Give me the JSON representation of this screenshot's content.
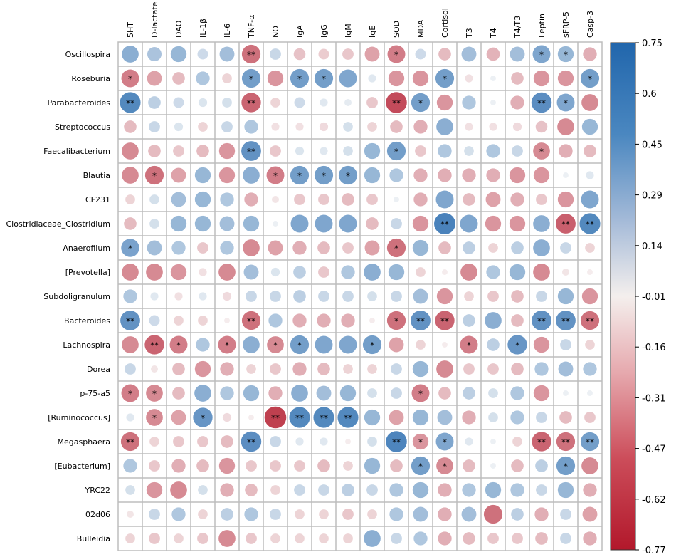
{
  "chart_data": {
    "type": "heatmap",
    "title": "",
    "columns": [
      "5HT",
      "D-lactate",
      "DAO",
      "IL-1β",
      "IL-6",
      "TNF-α",
      "NO",
      "IgA",
      "IgG",
      "IgM",
      "IgE",
      "SOD",
      "MDA",
      "Cortisol",
      "T3",
      "T4",
      "T4/T3",
      "Leptin",
      "sFRP-5",
      "Casp-3"
    ],
    "rows": [
      "Oscillospira",
      "Roseburia",
      "Parabacteroides",
      "Streptococcus",
      "Faecalibacterium",
      "Blautia",
      "CF231",
      "Clostridiaceae_Clostridium",
      "Anaerofilum",
      "[Prevotella]",
      "Subdoligranulum",
      "Bacteroides",
      "Lachnospira",
      "Dorea",
      "p-75-a5",
      "[Ruminococcus]",
      "Megasphaera",
      "[Eubacterium]",
      "YRC22",
      "02d06",
      "Bulleidia"
    ],
    "values": [
      [
        0.45,
        0.32,
        0.4,
        0.18,
        0.35,
        -0.55,
        0.2,
        -0.22,
        -0.18,
        -0.2,
        -0.35,
        -0.5,
        0.18,
        -0.25,
        0.35,
        -0.28,
        0.35,
        0.5,
        0.4,
        -0.3
      ],
      [
        -0.5,
        -0.35,
        -0.25,
        0.3,
        -0.15,
        0.55,
        -0.4,
        0.55,
        0.55,
        0.5,
        0.1,
        -0.4,
        -0.4,
        0.55,
        -0.1,
        0.05,
        -0.25,
        -0.4,
        -0.4,
        0.55
      ],
      [
        0.68,
        0.25,
        0.18,
        0.12,
        0.15,
        -0.6,
        -0.15,
        0.18,
        0.1,
        0.08,
        -0.2,
        -0.7,
        0.55,
        -0.4,
        0.3,
        0.05,
        -0.3,
        0.65,
        0.5,
        -0.45
      ],
      [
        -0.25,
        0.2,
        0.12,
        -0.15,
        0.2,
        0.3,
        -0.1,
        -0.1,
        -0.12,
        0.15,
        -0.15,
        -0.25,
        -0.3,
        0.45,
        -0.1,
        -0.1,
        -0.12,
        -0.22,
        -0.45,
        0.4
      ],
      [
        -0.45,
        -0.25,
        -0.2,
        -0.25,
        -0.4,
        0.62,
        -0.2,
        0.12,
        0.1,
        0.15,
        0.4,
        0.55,
        -0.2,
        0.3,
        0.15,
        0.3,
        0.2,
        -0.45,
        -0.3,
        -0.25
      ],
      [
        -0.45,
        -0.55,
        -0.35,
        0.4,
        -0.4,
        0.45,
        -0.5,
        0.55,
        0.55,
        0.55,
        0.4,
        0.3,
        -0.3,
        -0.3,
        -0.3,
        -0.3,
        -0.4,
        -0.4,
        0.05,
        0.1
      ],
      [
        -0.15,
        0.15,
        0.35,
        0.4,
        0.3,
        -0.3,
        -0.08,
        -0.2,
        -0.2,
        -0.25,
        -0.2,
        0.05,
        -0.3,
        0.5,
        -0.25,
        -0.35,
        -0.3,
        -0.2,
        -0.4,
        0.5
      ],
      [
        -0.25,
        0.15,
        0.4,
        0.4,
        0.35,
        0.4,
        0.05,
        0.5,
        0.5,
        0.5,
        -0.25,
        0.2,
        -0.4,
        0.72,
        0.5,
        -0.4,
        -0.4,
        0.45,
        -0.62,
        0.68
      ],
      [
        0.52,
        0.35,
        0.3,
        -0.2,
        0.3,
        -0.45,
        -0.35,
        -0.3,
        -0.25,
        -0.2,
        -0.35,
        -0.55,
        0.4,
        -0.25,
        0.25,
        -0.15,
        0.25,
        0.45,
        0.2,
        -0.15
      ],
      [
        -0.45,
        -0.45,
        -0.4,
        -0.1,
        -0.45,
        0.35,
        0.12,
        0.25,
        -0.2,
        0.3,
        0.45,
        0.4,
        -0.15,
        -0.05,
        -0.45,
        0.3,
        0.4,
        -0.45,
        -0.08,
        -0.05
      ],
      [
        0.3,
        0.1,
        -0.1,
        0.1,
        -0.12,
        0.2,
        0.2,
        0.25,
        0.2,
        0.2,
        0.15,
        0.2,
        0.35,
        -0.4,
        -0.15,
        -0.2,
        -0.25,
        0.2,
        0.4,
        -0.4
      ],
      [
        0.62,
        0.18,
        -0.15,
        -0.15,
        -0.05,
        -0.55,
        0.3,
        -0.3,
        -0.3,
        -0.3,
        -0.05,
        -0.55,
        0.62,
        -0.6,
        0.25,
        0.45,
        -0.25,
        0.62,
        0.62,
        -0.55
      ],
      [
        -0.45,
        -0.6,
        -0.5,
        0.3,
        -0.5,
        0.45,
        -0.45,
        0.55,
        0.5,
        0.5,
        0.55,
        -0.35,
        -0.15,
        -0.05,
        -0.5,
        0.25,
        0.6,
        -0.4,
        0.2,
        -0.15
      ],
      [
        0.2,
        -0.08,
        -0.25,
        -0.4,
        -0.3,
        -0.15,
        -0.2,
        -0.3,
        -0.25,
        -0.15,
        -0.15,
        0.2,
        0.4,
        -0.45,
        -0.2,
        -0.2,
        -0.25,
        0.3,
        0.35,
        0.3
      ],
      [
        -0.5,
        -0.45,
        -0.25,
        0.45,
        0.3,
        0.4,
        -0.3,
        0.45,
        0.35,
        0.4,
        0.15,
        0.2,
        -0.5,
        -0.25,
        0.25,
        0.15,
        0.3,
        -0.4,
        0.05,
        0.05
      ],
      [
        0.1,
        -0.45,
        -0.35,
        0.6,
        -0.12,
        -0.05,
        -0.75,
        0.68,
        0.68,
        0.68,
        0.4,
        -0.35,
        0.4,
        0.35,
        -0.3,
        0.15,
        0.3,
        0.2,
        -0.25,
        -0.2
      ],
      [
        -0.55,
        -0.15,
        -0.2,
        -0.2,
        -0.25,
        0.65,
        0.2,
        0.1,
        0.1,
        -0.05,
        0.15,
        0.7,
        -0.4,
        0.5,
        0.1,
        0.05,
        -0.15,
        -0.6,
        -0.55,
        0.55
      ],
      [
        0.3,
        -0.2,
        -0.3,
        -0.25,
        -0.4,
        -0.2,
        -0.2,
        -0.2,
        -0.25,
        -0.15,
        0.4,
        -0.25,
        0.55,
        -0.45,
        -0.25,
        0.05,
        -0.25,
        0.25,
        0.55,
        -0.45
      ],
      [
        0.15,
        -0.4,
        -0.45,
        0.15,
        -0.3,
        -0.25,
        -0.15,
        0.2,
        0.2,
        0.25,
        0.2,
        0.3,
        0.4,
        -0.3,
        0.3,
        0.4,
        0.3,
        0.2,
        0.4,
        -0.3
      ],
      [
        -0.08,
        0.2,
        0.3,
        -0.15,
        0.25,
        0.3,
        0.2,
        -0.15,
        -0.15,
        -0.2,
        -0.15,
        0.3,
        0.35,
        -0.3,
        0.35,
        -0.55,
        0.25,
        -0.3,
        0.2,
        -0.35
      ],
      [
        -0.15,
        -0.2,
        -0.15,
        -0.2,
        -0.45,
        -0.2,
        -0.15,
        -0.15,
        -0.15,
        -0.15,
        0.45,
        0.2,
        0.3,
        -0.3,
        -0.25,
        -0.2,
        -0.2,
        -0.25,
        0.2,
        -0.3
      ]
    ],
    "significance": [
      [
        "",
        "",
        "",
        "",
        "",
        "**",
        "",
        "",
        "",
        "",
        "",
        "*",
        "",
        "",
        "",
        "",
        "",
        "*",
        "*",
        ""
      ],
      [
        "*",
        "",
        "",
        "",
        "",
        "*",
        "",
        "*",
        "*",
        "",
        "",
        "",
        "",
        "*",
        "",
        "",
        "",
        "",
        "",
        "*"
      ],
      [
        "**",
        "",
        "",
        "",
        "",
        "**",
        "",
        "",
        "",
        "",
        "",
        "**",
        "*",
        "",
        "",
        "",
        "",
        "**",
        "*",
        ""
      ],
      [
        "",
        "",
        "",
        "",
        "",
        "",
        "",
        "",
        "",
        "",
        "",
        "",
        "",
        "",
        "",
        "",
        "",
        "",
        "",
        ""
      ],
      [
        "",
        "",
        "",
        "",
        "",
        "**",
        "",
        "",
        "",
        "",
        "",
        "*",
        "",
        "",
        "",
        "",
        "",
        "*",
        "",
        ""
      ],
      [
        "",
        "*",
        "",
        "",
        "",
        "",
        "*",
        "*",
        "*",
        "*",
        "",
        "",
        "",
        "",
        "",
        "",
        "",
        "",
        "",
        ""
      ],
      [
        "",
        "",
        "",
        "",
        "",
        "",
        "",
        "",
        "",
        "",
        "",
        "",
        "",
        "",
        "",
        "",
        "",
        "",
        "",
        ""
      ],
      [
        "",
        "",
        "",
        "",
        "",
        "",
        "",
        "",
        "",
        "",
        "",
        "",
        "",
        "**",
        "",
        "",
        "",
        "",
        "**",
        "**"
      ],
      [
        "*",
        "",
        "",
        "",
        "",
        "",
        "",
        "",
        "",
        "",
        "",
        "*",
        "",
        "",
        "",
        "",
        "",
        "",
        "",
        ""
      ],
      [
        "",
        "",
        "",
        "",
        "",
        "",
        "",
        "",
        "",
        "",
        "",
        "",
        "",
        "",
        "",
        "",
        "",
        "",
        "",
        ""
      ],
      [
        "",
        "",
        "",
        "",
        "",
        "",
        "",
        "",
        "",
        "",
        "",
        "",
        "",
        "",
        "",
        "",
        "",
        "",
        "",
        ""
      ],
      [
        "**",
        "",
        "",
        "",
        "",
        "**",
        "",
        "",
        "",
        "",
        "",
        "*",
        "**",
        "**",
        "",
        "",
        "",
        "**",
        "**",
        "**"
      ],
      [
        "",
        "**",
        "*",
        "",
        "*",
        "",
        "*",
        "*",
        "",
        "",
        "*",
        "",
        "",
        "",
        "*",
        "",
        "*",
        "",
        "",
        ""
      ],
      [
        "",
        "",
        "",
        "",
        "",
        "",
        "",
        "",
        "",
        "",
        "",
        "",
        "",
        "",
        "",
        "",
        "",
        "",
        "",
        ""
      ],
      [
        "*",
        "*",
        "",
        "",
        "",
        "",
        "",
        "",
        "",
        "",
        "",
        "",
        "*",
        "",
        "",
        "",
        "",
        "",
        "",
        ""
      ],
      [
        "",
        "*",
        "",
        "*",
        "",
        "",
        "**",
        "**",
        "**",
        "**",
        "",
        "",
        "",
        "",
        "",
        "",
        "",
        "",
        "",
        ""
      ],
      [
        "**",
        "",
        "",
        "",
        "",
        "**",
        "",
        "",
        "",
        "",
        "",
        "**",
        "*",
        "*",
        "",
        "",
        "",
        "**",
        "**",
        "**"
      ],
      [
        "",
        "",
        "",
        "",
        "",
        "",
        "",
        "",
        "",
        "",
        "",
        "",
        "*",
        "*",
        "",
        "",
        "",
        "",
        "*",
        ""
      ],
      [
        "",
        "",
        "",
        "",
        "",
        "",
        "",
        "",
        "",
        "",
        "",
        "",
        "",
        "",
        "",
        "",
        "",
        "",
        "",
        ""
      ],
      [
        "",
        "",
        "",
        "",
        "",
        "",
        "",
        "",
        "",
        "",
        "",
        "",
        "",
        "",
        "",
        "",
        "",
        "",
        "",
        ""
      ],
      [
        "",
        "",
        "",
        "",
        "",
        "",
        "",
        "",
        "",
        "",
        "",
        "",
        "",
        "",
        "",
        "",
        "",
        "",
        "",
        ""
      ]
    ],
    "colorbar": {
      "ticks": [
        "0.75",
        "0.6",
        "0.45",
        "0.29",
        "0.14",
        "-0.01",
        "-0.16",
        "-0.31",
        "-0.47",
        "-0.62",
        "-0.77"
      ],
      "range": [
        -0.77,
        0.75
      ],
      "colors": {
        "high": "#2166ac",
        "mid": "#f7f7f7",
        "low": "#b2182b"
      }
    }
  }
}
